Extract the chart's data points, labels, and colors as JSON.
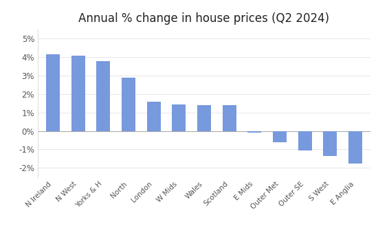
{
  "title": "Annual % change in house prices (Q2 2024)",
  "categories": [
    "N Ireland",
    "N West",
    "Yorks & H",
    "North",
    "London",
    "W Mids",
    "Wales",
    "Scotland",
    "E Mids",
    "Outer Met",
    "Outer SE",
    "S West",
    "E Anglia"
  ],
  "values": [
    4.15,
    4.1,
    3.8,
    2.9,
    1.6,
    1.45,
    1.4,
    1.4,
    -0.1,
    -0.6,
    -1.05,
    -1.35,
    -1.75
  ],
  "bar_color": "#7799dd",
  "background_color": "#ffffff",
  "ylim": [
    -2.5,
    5.5
  ],
  "yticks": [
    -2,
    -1,
    0,
    1,
    2,
    3,
    4,
    5
  ],
  "ytick_labels": [
    "-2%",
    "-1%",
    "0%",
    "1%",
    "2%",
    "3%",
    "4%",
    "5%"
  ],
  "title_fontsize": 12,
  "tick_fontsize": 8.5,
  "label_fontsize": 7.5
}
